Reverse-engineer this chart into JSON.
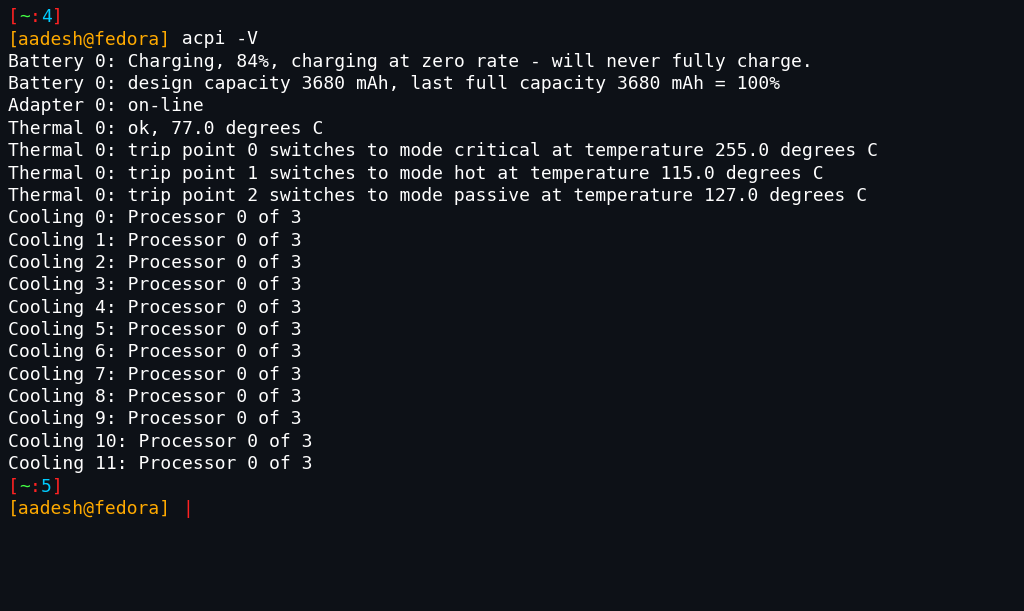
{
  "background_color": "#0d1117",
  "font_family": "DejaVu Sans Mono",
  "font_size": 13.0,
  "lines": [
    {
      "segments": [
        {
          "text": "[",
          "color": "#ff2222"
        },
        {
          "text": "~",
          "color": "#44ff44"
        },
        {
          "text": ":",
          "color": "#ff2222"
        },
        {
          "text": "4",
          "color": "#00ccff"
        },
        {
          "text": "]",
          "color": "#ff2222"
        }
      ]
    },
    {
      "segments": [
        {
          "text": "[aadesh@fedora]",
          "color": "#ffaa00"
        },
        {
          "text": " acpi -V",
          "color": "#ffffff"
        }
      ]
    },
    {
      "segments": [
        {
          "text": "Battery 0: Charging, 84%, charging at zero rate - will never fully charge.",
          "color": "#ffffff"
        }
      ]
    },
    {
      "segments": [
        {
          "text": "Battery 0: design capacity 3680 mAh, last full capacity 3680 mAh = 100%",
          "color": "#ffffff"
        }
      ]
    },
    {
      "segments": [
        {
          "text": "Adapter 0: on-line",
          "color": "#ffffff"
        }
      ]
    },
    {
      "segments": [
        {
          "text": "Thermal 0: ok, 77.0 degrees C",
          "color": "#ffffff"
        }
      ]
    },
    {
      "segments": [
        {
          "text": "Thermal 0: trip point 0 switches to mode critical at temperature 255.0 degrees C",
          "color": "#ffffff"
        }
      ]
    },
    {
      "segments": [
        {
          "text": "Thermal 0: trip point 1 switches to mode hot at temperature 115.0 degrees C",
          "color": "#ffffff"
        }
      ]
    },
    {
      "segments": [
        {
          "text": "Thermal 0: trip point 2 switches to mode passive at temperature 127.0 degrees C",
          "color": "#ffffff"
        }
      ]
    },
    {
      "segments": [
        {
          "text": "Cooling 0: Processor 0 of 3",
          "color": "#ffffff"
        }
      ]
    },
    {
      "segments": [
        {
          "text": "Cooling 1: Processor 0 of 3",
          "color": "#ffffff"
        }
      ]
    },
    {
      "segments": [
        {
          "text": "Cooling 2: Processor 0 of 3",
          "color": "#ffffff"
        }
      ]
    },
    {
      "segments": [
        {
          "text": "Cooling 3: Processor 0 of 3",
          "color": "#ffffff"
        }
      ]
    },
    {
      "segments": [
        {
          "text": "Cooling 4: Processor 0 of 3",
          "color": "#ffffff"
        }
      ]
    },
    {
      "segments": [
        {
          "text": "Cooling 5: Processor 0 of 3",
          "color": "#ffffff"
        }
      ]
    },
    {
      "segments": [
        {
          "text": "Cooling 6: Processor 0 of 3",
          "color": "#ffffff"
        }
      ]
    },
    {
      "segments": [
        {
          "text": "Cooling 7: Processor 0 of 3",
          "color": "#ffffff"
        }
      ]
    },
    {
      "segments": [
        {
          "text": "Cooling 8: Processor 0 of 3",
          "color": "#ffffff"
        }
      ]
    },
    {
      "segments": [
        {
          "text": "Cooling 9: Processor 0 of 3",
          "color": "#ffffff"
        }
      ]
    },
    {
      "segments": [
        {
          "text": "Cooling 10: Processor 0 of 3",
          "color": "#ffffff"
        }
      ]
    },
    {
      "segments": [
        {
          "text": "Cooling 11: Processor 0 of 3",
          "color": "#ffffff"
        }
      ]
    },
    {
      "segments": [
        {
          "text": "[",
          "color": "#ff2222"
        },
        {
          "text": "~",
          "color": "#44ff44"
        },
        {
          "text": ":",
          "color": "#ff2222"
        },
        {
          "text": "5",
          "color": "#00ccff"
        },
        {
          "text": "]",
          "color": "#ff2222"
        }
      ]
    },
    {
      "segments": [
        {
          "text": "[aadesh@fedora]",
          "color": "#ffaa00"
        },
        {
          "text": " ",
          "color": "#ffffff"
        },
        {
          "text": "|",
          "color": "#ff2222",
          "cursor": true
        }
      ]
    }
  ]
}
